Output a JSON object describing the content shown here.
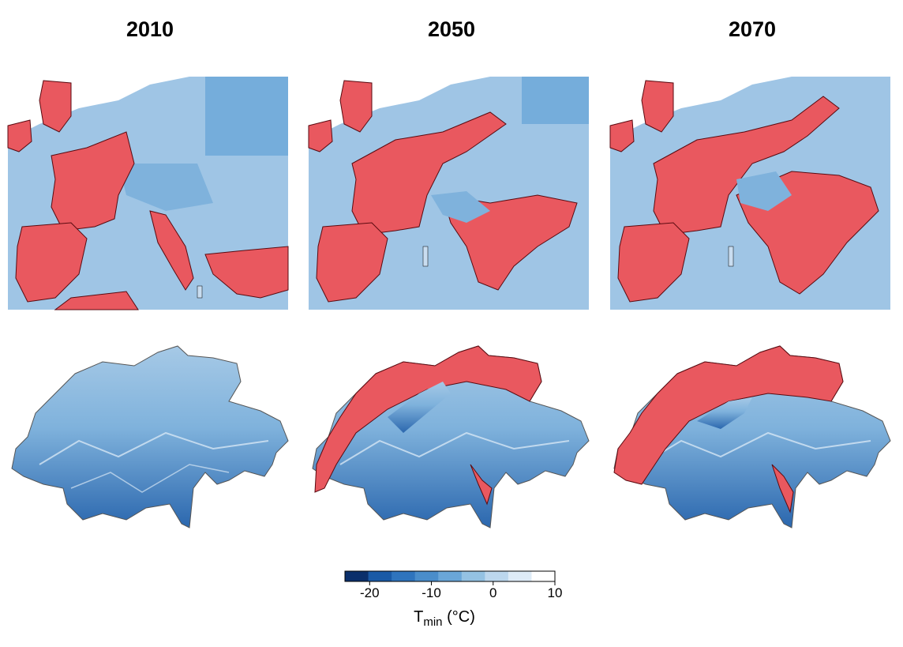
{
  "panels": {
    "years": [
      "2010",
      "2050",
      "2070"
    ]
  },
  "legend": {
    "title_main": "T",
    "title_sub": "min",
    "title_unit": " (°C)",
    "tick_labels": [
      "-20",
      "-10",
      "0",
      "10"
    ],
    "range": [
      -24,
      10
    ],
    "colors": [
      "#0b2f6b",
      "#1a5aa6",
      "#2f74bd",
      "#4a8dca",
      "#6aa6d8",
      "#94c2e3",
      "#bcd7ee",
      "#deebf7",
      "#ffffff"
    ]
  },
  "colors": {
    "suitable_area": "#e9585f",
    "suitable_edge": "#5a0a10",
    "cold_blue": "#4a8dca",
    "mid_blue": "#7fb2dc",
    "light_blue": "#9fc5e5",
    "pale_blue": "#c9ddf0"
  }
}
